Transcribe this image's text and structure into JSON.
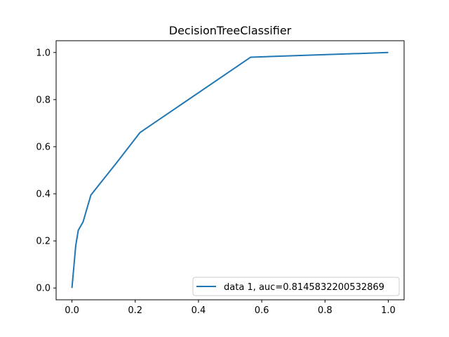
{
  "chart_data": {
    "type": "line",
    "title": "DecisionTreeClassifier",
    "xlabel": "",
    "ylabel": "",
    "xlim": [
      -0.05,
      1.05
    ],
    "ylim": [
      -0.05,
      1.05
    ],
    "xticks": [
      0.0,
      0.2,
      0.4,
      0.6,
      0.8,
      1.0
    ],
    "xtick_labels": [
      "0.0",
      "0.2",
      "0.4",
      "0.6",
      "0.8",
      "1.0"
    ],
    "yticks": [
      0.0,
      0.2,
      0.4,
      0.6,
      0.8,
      1.0
    ],
    "ytick_labels": [
      "0.0",
      "0.2",
      "0.4",
      "0.6",
      "0.8",
      "1.0"
    ],
    "grid": false,
    "legend_position": "bottom-right",
    "series": [
      {
        "name": "data 1, auc=0.8145832200532869",
        "color": "#1f77b4",
        "x": [
          0.0,
          0.008,
          0.012,
          0.02,
          0.035,
          0.06,
          0.14,
          0.215,
          0.565,
          1.0
        ],
        "y": [
          0.0,
          0.12,
          0.18,
          0.245,
          0.28,
          0.395,
          0.53,
          0.66,
          0.98,
          1.0
        ]
      }
    ]
  }
}
